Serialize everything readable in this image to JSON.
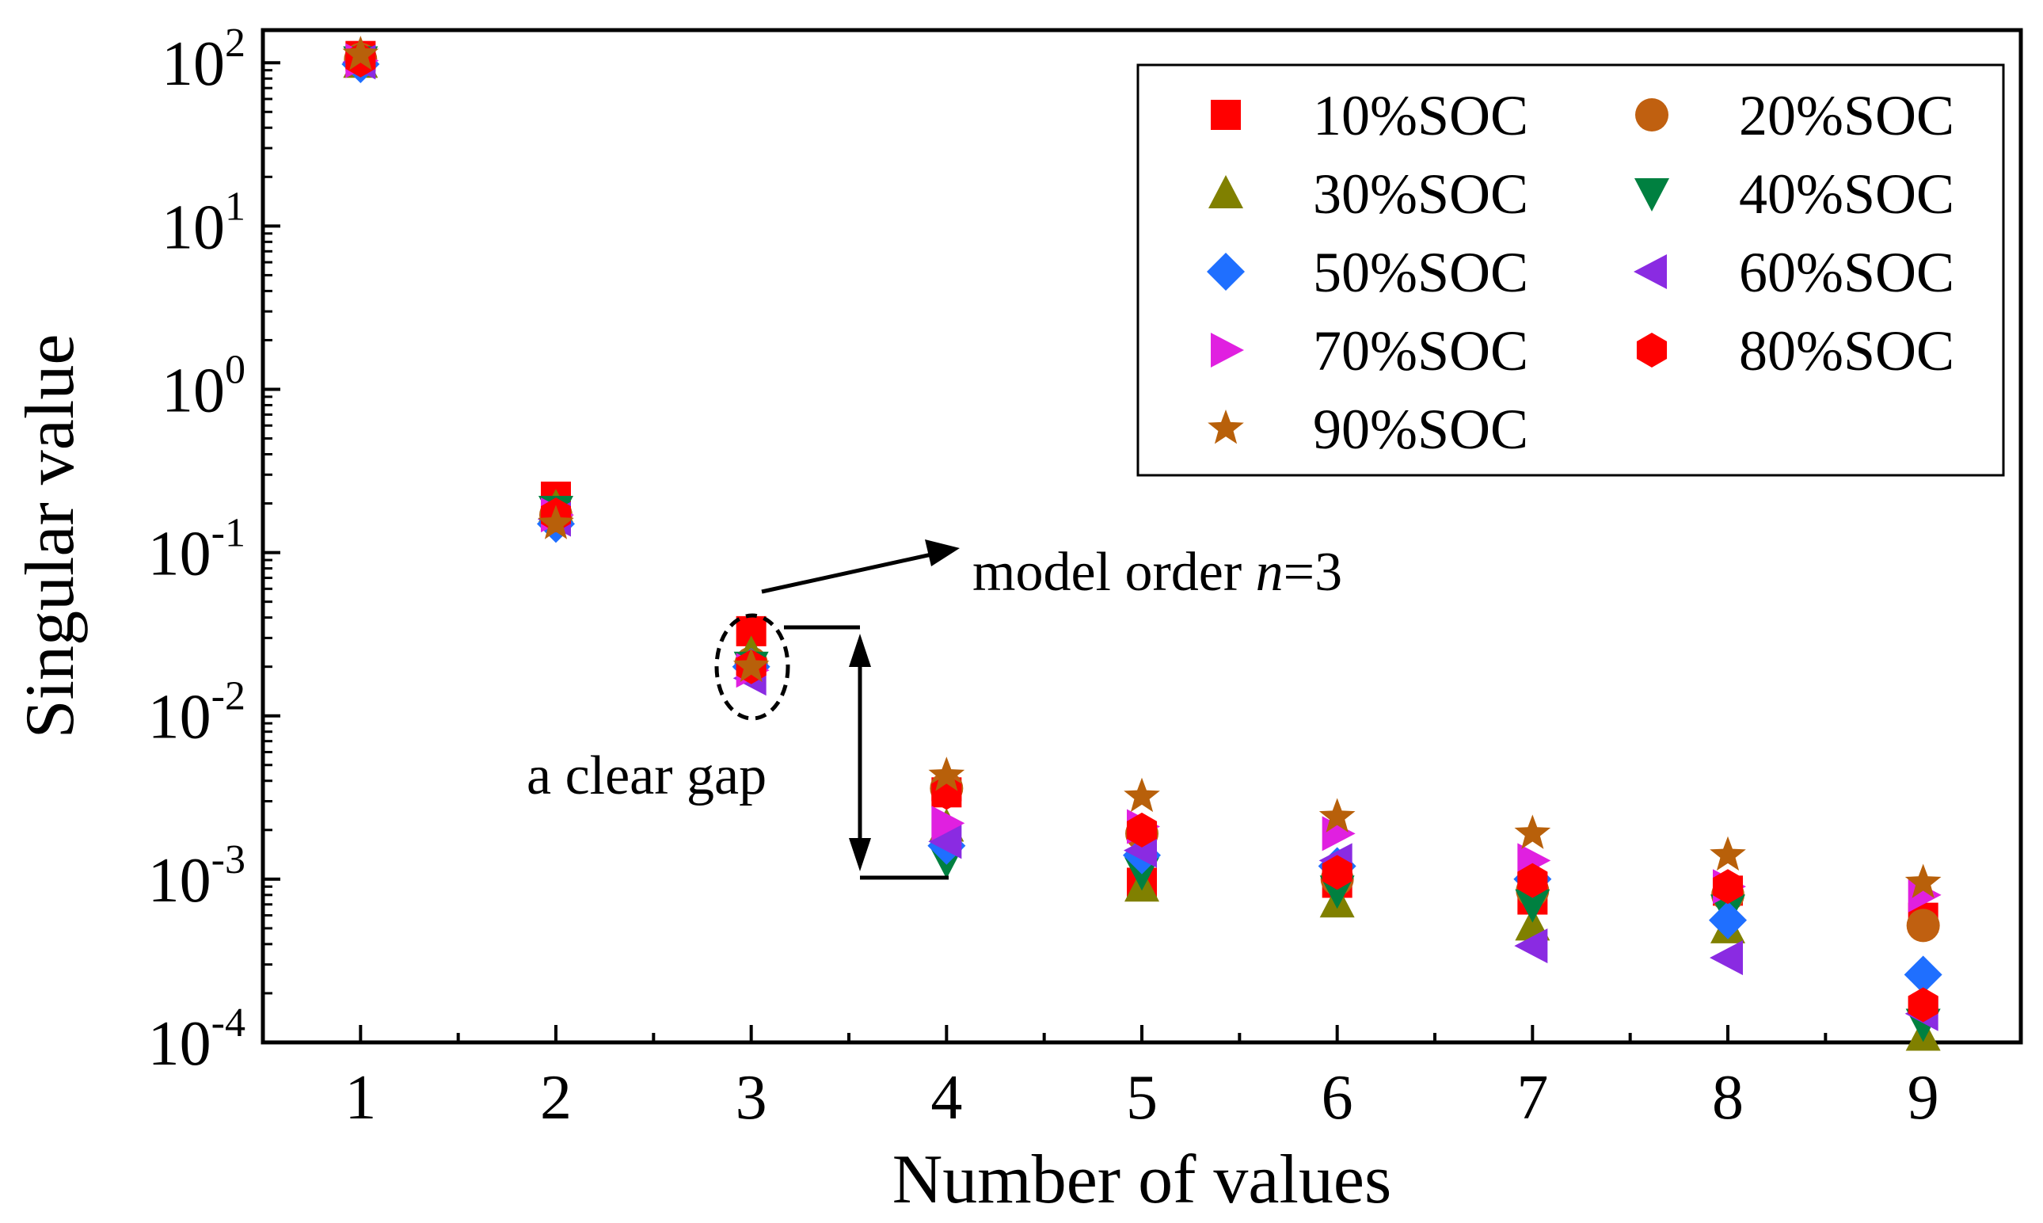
{
  "chart_data": {
    "type": "scatter",
    "xlabel": "Number of values",
    "ylabel": "Singular value",
    "xlim": [
      0.5,
      9.5
    ],
    "ylim_log10": [
      -4,
      2.2
    ],
    "y_scale": "log",
    "x_ticks": [
      1,
      2,
      3,
      4,
      5,
      6,
      7,
      8,
      9
    ],
    "y_ticks": [
      {
        "base": "10",
        "exp": "2",
        "value": 100
      },
      {
        "base": "10",
        "exp": "1",
        "value": 10
      },
      {
        "base": "10",
        "exp": "0",
        "value": 1
      },
      {
        "base": "10",
        "exp": "-1",
        "value": 0.1
      },
      {
        "base": "10",
        "exp": "-2",
        "value": 0.01
      },
      {
        "base": "10",
        "exp": "-3",
        "value": 0.001
      },
      {
        "base": "10",
        "exp": "-4",
        "value": 0.0001
      }
    ],
    "grid": false,
    "legend_position": "top-right",
    "x": [
      1,
      2,
      3,
      4,
      5,
      6,
      7,
      8,
      9
    ],
    "series": [
      {
        "name": "10%SOC",
        "marker": "square",
        "color": "#ff0000",
        "values": [
          110,
          0.22,
          0.033,
          0.0034,
          0.00095,
          0.00095,
          0.00075,
          0.00085,
          0.00058
        ]
      },
      {
        "name": "20%SOC",
        "marker": "circle",
        "color": "#c06010",
        "values": [
          105,
          0.17,
          0.021,
          0.0036,
          0.0019,
          0.001,
          0.00085,
          0.0008,
          0.00052
        ]
      },
      {
        "name": "30%SOC",
        "marker": "triangle-up",
        "color": "#808000",
        "values": [
          100,
          0.19,
          0.024,
          0.0021,
          0.0009,
          0.00072,
          0.00052,
          0.0005,
          0.00011
        ]
      },
      {
        "name": "40%SOC",
        "marker": "triangle-down",
        "color": "#008040",
        "values": [
          102,
          0.18,
          0.02,
          0.0013,
          0.0011,
          0.00085,
          0.0007,
          0.00065,
          0.00013
        ]
      },
      {
        "name": "50%SOC",
        "marker": "diamond",
        "color": "#1f6fff",
        "values": [
          98,
          0.15,
          0.02,
          0.0016,
          0.0014,
          0.0012,
          0.001,
          0.00056,
          0.00026
        ]
      },
      {
        "name": "60%SOC",
        "marker": "triangle-left",
        "color": "#8a2be2",
        "values": [
          101,
          0.16,
          0.017,
          0.0017,
          0.0015,
          0.0013,
          0.00039,
          0.00033,
          0.00015
        ]
      },
      {
        "name": "70%SOC",
        "marker": "triangle-right",
        "color": "#e020e0",
        "values": [
          103,
          0.17,
          0.019,
          0.0022,
          0.0021,
          0.0019,
          0.0013,
          0.0009,
          0.0008
        ]
      },
      {
        "name": "80%SOC",
        "marker": "hexagon",
        "color": "#ff0000",
        "values": [
          104,
          0.17,
          0.02,
          0.0034,
          0.002,
          0.0011,
          0.00098,
          0.0009,
          0.00017
        ]
      },
      {
        "name": "90%SOC",
        "marker": "star",
        "color": "#b8600a",
        "values": [
          112,
          0.15,
          0.02,
          0.0043,
          0.0032,
          0.0024,
          0.0019,
          0.0014,
          0.00095
        ]
      }
    ],
    "annotations": {
      "model_order_prefix": "model order ",
      "model_order_var": "n",
      "model_order_suffix": "=3",
      "gap_label": "a clear gap"
    }
  }
}
